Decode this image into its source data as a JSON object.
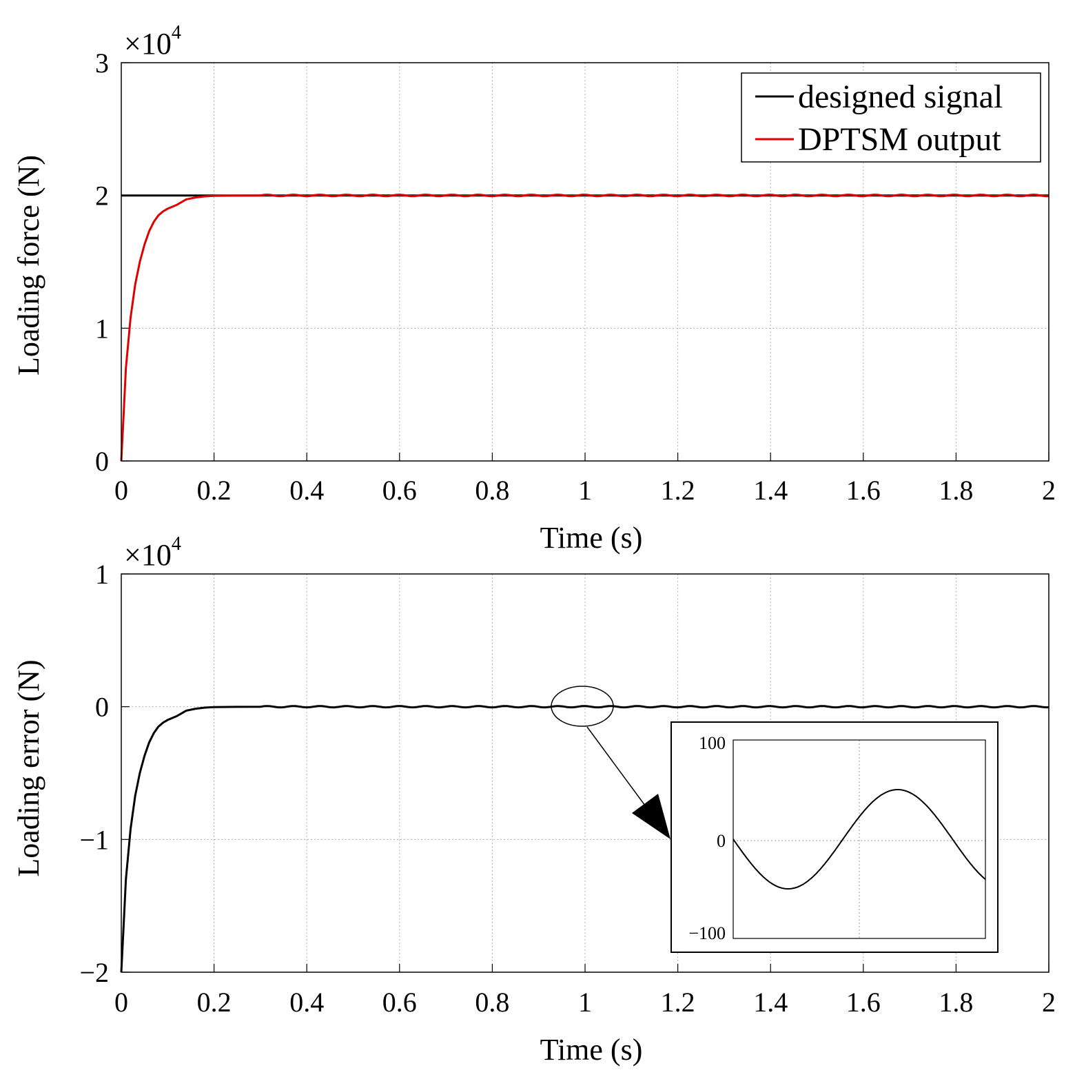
{
  "chart_data": [
    {
      "type": "line",
      "id": "top",
      "xlabel": "Time (s)",
      "ylabel": "Loading force (N)",
      "xlim": [
        0,
        2
      ],
      "ylim": [
        0,
        3
      ],
      "y_multiplier": "×10",
      "y_multiplier_exp": "4",
      "xticks": [
        0,
        0.2,
        0.4,
        0.6,
        0.8,
        1,
        1.2,
        1.4,
        1.6,
        1.8,
        2
      ],
      "xtick_labels": [
        "0",
        "0.2",
        "0.4",
        "0.6",
        "0.8",
        "1",
        "1.2",
        "1.4",
        "1.6",
        "1.8",
        "2"
      ],
      "yticks": [
        0,
        1,
        2,
        3
      ],
      "ytick_labels": [
        "0",
        "1",
        "2",
        "3"
      ],
      "grid": true,
      "legend": {
        "position": "top-right",
        "entries": [
          "designed signal",
          "DPTSM output"
        ]
      },
      "series": [
        {
          "name": "designed signal",
          "color": "#000000",
          "x": [
            0,
            2
          ],
          "y": [
            2,
            2
          ]
        },
        {
          "name": "DPTSM output",
          "color": "#e00000",
          "x": [
            0,
            0.005,
            0.01,
            0.02,
            0.03,
            0.04,
            0.05,
            0.06,
            0.07,
            0.08,
            0.09,
            0.1,
            0.12,
            0.14,
            0.16,
            0.18,
            0.2,
            0.25,
            0.3,
            0.4,
            0.6,
            0.8,
            1.0,
            1.2,
            1.4,
            1.6,
            1.8,
            2.0
          ],
          "y": [
            0,
            0.35,
            0.7,
            1.08,
            1.33,
            1.5,
            1.63,
            1.73,
            1.8,
            1.85,
            1.88,
            1.9,
            1.93,
            1.97,
            1.985,
            1.993,
            1.997,
            1.999,
            2.0,
            2.0,
            2.0,
            2.0,
            2.0,
            2.0,
            2.0,
            2.0,
            2.0,
            2.0
          ]
        }
      ]
    },
    {
      "type": "line",
      "id": "bottom",
      "xlabel": "Time (s)",
      "ylabel": "Loading error (N)",
      "xlim": [
        0,
        2
      ],
      "ylim": [
        -2,
        1
      ],
      "y_multiplier": "×10",
      "y_multiplier_exp": "4",
      "xticks": [
        0,
        0.2,
        0.4,
        0.6,
        0.8,
        1,
        1.2,
        1.4,
        1.6,
        1.8,
        2
      ],
      "xtick_labels": [
        "0",
        "0.2",
        "0.4",
        "0.6",
        "0.8",
        "1",
        "1.2",
        "1.4",
        "1.6",
        "1.8",
        "2"
      ],
      "yticks": [
        -2,
        -1,
        0,
        1
      ],
      "ytick_labels": [
        "−2",
        "−1",
        "0",
        "1"
      ],
      "grid": true,
      "series": [
        {
          "name": "loading error",
          "color": "#000000",
          "x": [
            0,
            0.005,
            0.01,
            0.02,
            0.03,
            0.04,
            0.05,
            0.06,
            0.07,
            0.08,
            0.09,
            0.1,
            0.12,
            0.14,
            0.16,
            0.18,
            0.2,
            0.25,
            0.3
          ],
          "y": [
            -2.0,
            -1.65,
            -1.3,
            -0.92,
            -0.67,
            -0.5,
            -0.37,
            -0.27,
            -0.2,
            -0.15,
            -0.12,
            -0.1,
            -0.07,
            -0.03,
            -0.015,
            -0.007,
            -0.003,
            -0.001,
            0.0
          ],
          "steady_oscillation": {
            "from": 0.3,
            "to": 2.0,
            "amplitude": 50,
            "period": 0.057
          }
        }
      ],
      "annotation": {
        "type": "ellipse-zoom",
        "center_x": 1.0,
        "center_y": 0
      },
      "inset": {
        "yticks": [
          -100,
          0,
          100
        ],
        "ytick_labels": [
          "−100",
          "0",
          "100"
        ],
        "ylim": [
          -100,
          100
        ],
        "series": {
          "name": "zoomed loading error",
          "amplitude": 50,
          "cycles": 1.15,
          "start_phase": "down"
        }
      }
    }
  ]
}
